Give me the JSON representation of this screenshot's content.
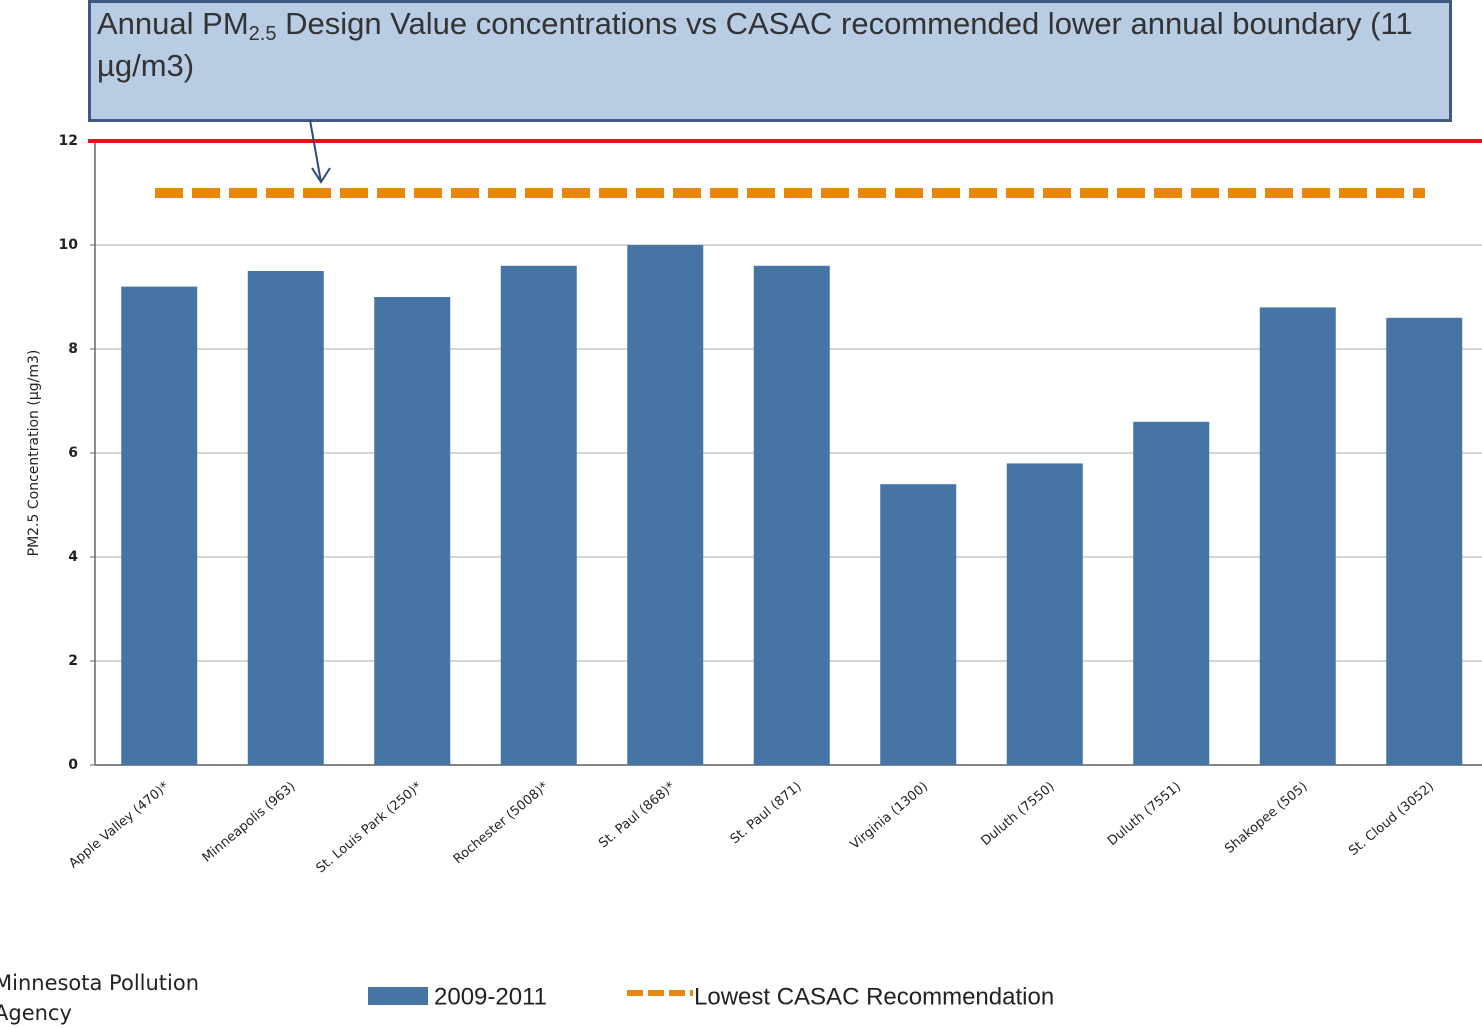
{
  "chart_data": {
    "type": "bar",
    "title": {
      "prefix": "Annual PM",
      "subscript": "2.5",
      "suffix": " Design Value concentrations vs CASAC recommended lower annual boundary (11 µg/m3)"
    },
    "y_label": "PM2.5 Concentration (µg/m3)",
    "categories": [
      "Apple Valley (470)*",
      "Minneapolis (963)",
      "St. Louis Park (250)*",
      "Rochester (5008)*",
      "St. Paul (868)*",
      "St. Paul (871)",
      "Virginia (1300)",
      "Duluth (7550)",
      "Duluth (7551)",
      "Shakopee (505)",
      "St. Cloud (3052)"
    ],
    "series": [
      {
        "name": "2009-2011",
        "color": "#4674a5",
        "values": [
          9.2,
          9.5,
          9.0,
          9.6,
          10.0,
          9.6,
          5.4,
          5.8,
          6.6,
          8.8,
          8.6
        ]
      }
    ],
    "reference_lines": [
      {
        "name": "Lowest CASAC Recommendation",
        "value": 11,
        "color": "#e8870c",
        "style": "dashed"
      },
      {
        "value": 12,
        "color": "#e8141a",
        "style": "solid"
      }
    ],
    "ylim": [
      0,
      12
    ],
    "yticks": [
      0,
      2,
      4,
      6,
      8,
      10,
      12
    ],
    "grid": true,
    "source": "Minnesota Pollution Agency"
  }
}
